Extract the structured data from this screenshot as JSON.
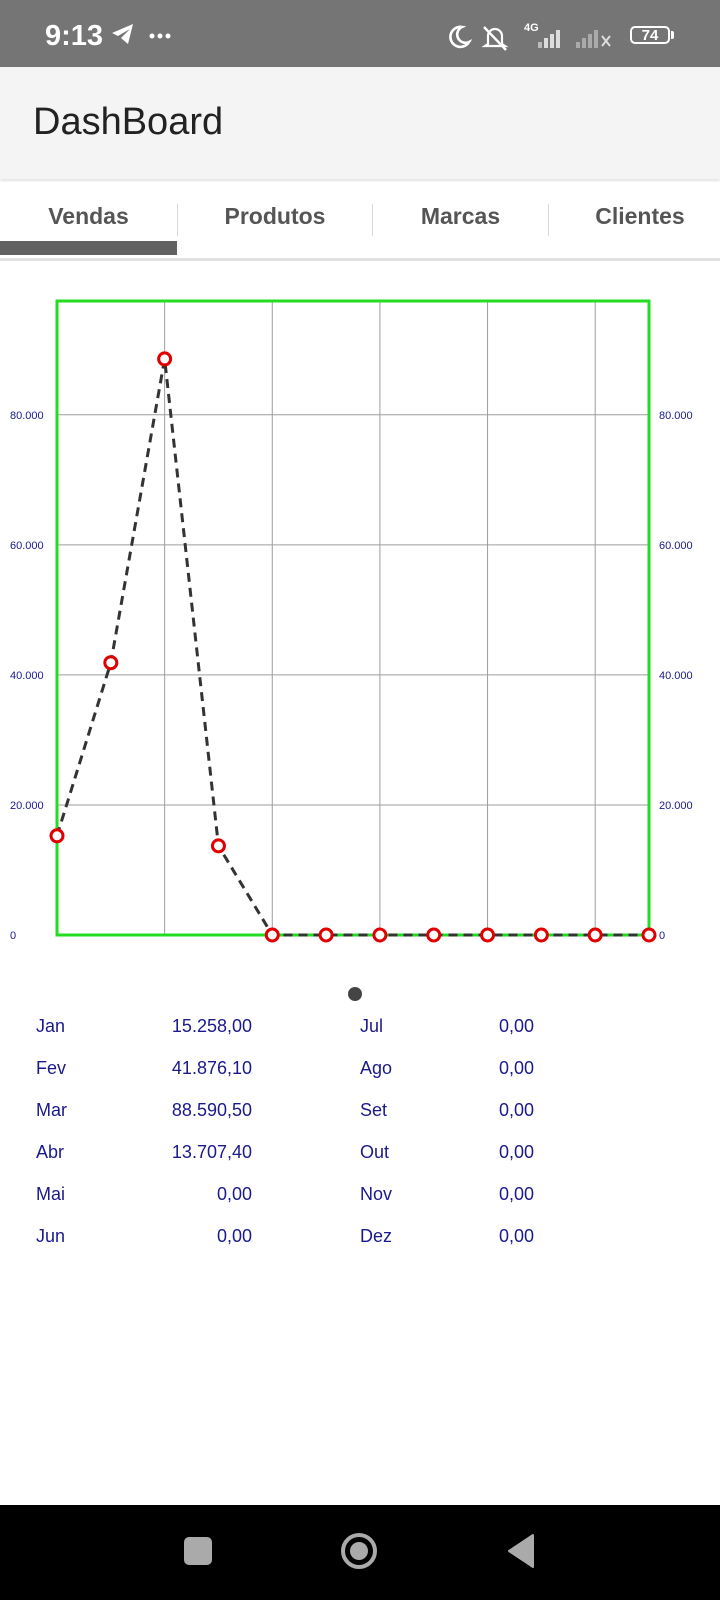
{
  "status_bar": {
    "time": "9:13",
    "network": "4G",
    "battery": "74",
    "icons": [
      "telegram-icon",
      "more-dots-icon",
      "moon-icon",
      "mute-icon",
      "signal-icon",
      "no-signal-icon",
      "battery-icon"
    ]
  },
  "app_bar": {
    "title": "DashBoard"
  },
  "tabs": [
    {
      "label": "Vendas",
      "selected": true
    },
    {
      "label": "Produtos",
      "selected": false
    },
    {
      "label": "Marcas",
      "selected": false
    },
    {
      "label": "Clientes",
      "selected": false
    }
  ],
  "chart_data": {
    "type": "line",
    "x": [
      1,
      2,
      3,
      4,
      5,
      6,
      7,
      8,
      9,
      10,
      11,
      12
    ],
    "series": [
      {
        "values": [
          15258.0,
          41876.1,
          88590.5,
          13707.4,
          0,
          0,
          0,
          0,
          0,
          0,
          0,
          0
        ]
      }
    ],
    "ylim": [
      0,
      97500
    ],
    "yticks": [
      "0",
      "20.000",
      "40.000",
      "60.000",
      "80.000"
    ],
    "ytick_values": [
      0,
      20000,
      40000,
      60000,
      80000
    ],
    "dual_y_axis": true,
    "grid": true,
    "line_style": "dashed",
    "colors": {
      "line": "#333333",
      "marker": "#e00000",
      "border": "#22dd22",
      "grid": "#9e9e9e",
      "tick": "#1a1a8c"
    }
  },
  "table": {
    "rows": [
      {
        "month": "Jan",
        "value": "15.258,00"
      },
      {
        "month": "Fev",
        "value": "41.876,10"
      },
      {
        "month": "Mar",
        "value": "88.590,50"
      },
      {
        "month": "Abr",
        "value": "13.707,40"
      },
      {
        "month": "Mai",
        "value": "0,00"
      },
      {
        "month": "Jun",
        "value": "0,00"
      },
      {
        "month": "Jul",
        "value": "0,00"
      },
      {
        "month": "Ago",
        "value": "0,00"
      },
      {
        "month": "Set",
        "value": "0,00"
      },
      {
        "month": "Out",
        "value": "0,00"
      },
      {
        "month": "Nov",
        "value": "0,00"
      },
      {
        "month": "Dez",
        "value": "0,00"
      }
    ]
  },
  "nav_bar": {
    "icons": [
      "recent-apps-icon",
      "home-icon",
      "back-icon"
    ]
  }
}
